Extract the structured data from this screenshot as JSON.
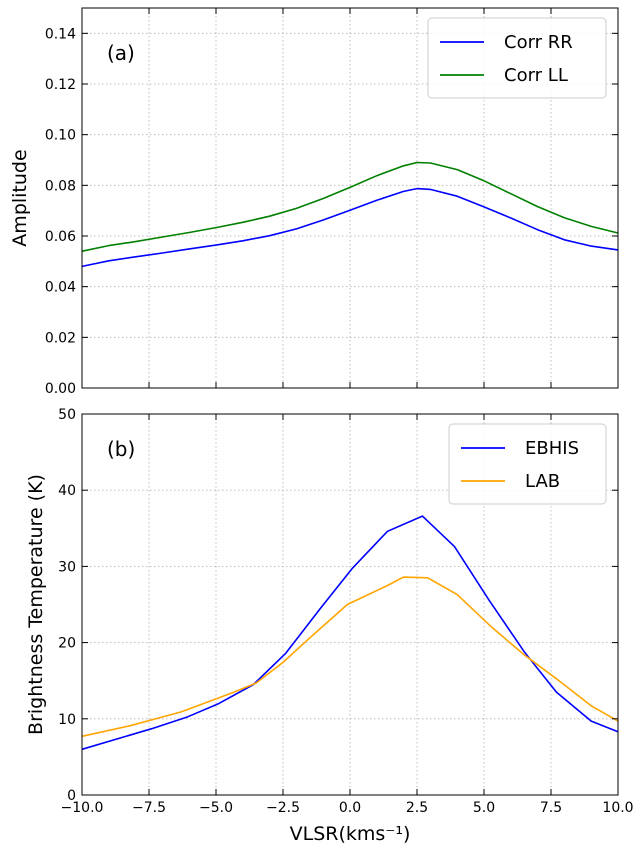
{
  "chart_data": [
    {
      "type": "line",
      "panel_label": "(a)",
      "xlabel": "",
      "ylabel": "Amplitude",
      "xlim": [
        -10,
        10
      ],
      "ylim": [
        0,
        0.15
      ],
      "yticks": [
        0.0,
        0.02,
        0.04,
        0.06,
        0.08,
        0.1,
        0.12,
        0.14
      ],
      "ytick_labels": [
        "0.00",
        "0.02",
        "0.04",
        "0.06",
        "0.08",
        "0.10",
        "0.12",
        "0.14"
      ],
      "grid": true,
      "legend_position": "top-right",
      "series": [
        {
          "name": "Corr RR",
          "color": "#0000ff",
          "x": [
            -10,
            -9,
            -8,
            -7,
            -6,
            -5,
            -4,
            -3,
            -2,
            -1,
            0,
            1,
            2,
            2.5,
            3,
            4,
            5,
            6,
            7,
            8,
            9,
            10
          ],
          "y": [
            0.048,
            0.0502,
            0.0518,
            0.0533,
            0.0549,
            0.0564,
            0.0581,
            0.0601,
            0.0628,
            0.0663,
            0.0702,
            0.0741,
            0.0776,
            0.0787,
            0.0784,
            0.0757,
            0.0715,
            0.0671,
            0.0625,
            0.0585,
            0.056,
            0.0545
          ]
        },
        {
          "name": "Corr LL",
          "color": "#008000",
          "x": [
            -10,
            -9,
            -8,
            -7,
            -6,
            -5,
            -4,
            -3,
            -2,
            -1,
            0,
            1,
            2,
            2.5,
            3,
            4,
            5,
            6,
            7,
            8,
            9,
            10
          ],
          "y": [
            0.054,
            0.0562,
            0.0578,
            0.0596,
            0.0614,
            0.0633,
            0.0654,
            0.0678,
            0.0709,
            0.0748,
            0.0792,
            0.0838,
            0.0877,
            0.089,
            0.0888,
            0.0862,
            0.0818,
            0.0767,
            0.0716,
            0.0672,
            0.0638,
            0.0612
          ]
        }
      ]
    },
    {
      "type": "line",
      "panel_label": "(b)",
      "xlabel": "VLSR(kms⁻¹)",
      "ylabel": "Brightness Temperature (K)",
      "xlim": [
        -10,
        10
      ],
      "ylim": [
        0,
        50
      ],
      "xticks": [
        -10,
        -7.5,
        -5,
        -2.5,
        0,
        2.5,
        5,
        7.5,
        10
      ],
      "xtick_labels": [
        "−10.0",
        "−7.5",
        "−5.0",
        "−2.5",
        "0.0",
        "2.5",
        "5.0",
        "7.5",
        "10.0"
      ],
      "yticks": [
        0,
        10,
        20,
        30,
        40,
        50
      ],
      "ytick_labels": [
        "0",
        "10",
        "20",
        "30",
        "40",
        "50"
      ],
      "grid": true,
      "legend_position": "top-right",
      "series": [
        {
          "name": "EBHIS",
          "color": "#0000ff",
          "x": [
            -10,
            -7.4,
            -6.1,
            -4.9,
            -3.6,
            -2.4,
            -1.1,
            0.1,
            1.4,
            2.7,
            3.9,
            5.2,
            6.5,
            7.7,
            9,
            10
          ],
          "y": [
            6,
            8.7,
            10.2,
            12,
            14.5,
            18.6,
            24.5,
            29.8,
            34.6,
            36.6,
            32.6,
            25.5,
            18.8,
            13.5,
            9.7,
            8.3
          ]
        },
        {
          "name": "LAB",
          "color": "#ffa500",
          "x": [
            -10,
            -8.2,
            -6.3,
            -4.4,
            -3.5,
            -2.5,
            -1.6,
            -0.1,
            1.4,
            2,
            2.9,
            4,
            5.3,
            6.5,
            7.8,
            9,
            10
          ],
          "y": [
            7.7,
            9.1,
            10.9,
            13.4,
            14.7,
            17.4,
            20.3,
            25,
            27.5,
            28.6,
            28.5,
            26.3,
            22,
            18.4,
            15,
            11.7,
            9.7
          ]
        }
      ]
    }
  ]
}
